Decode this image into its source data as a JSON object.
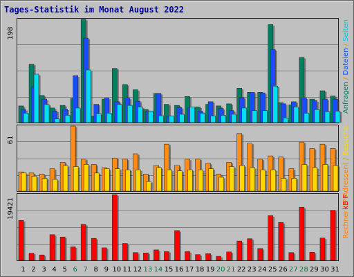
{
  "chart_data": {
    "type": "bar",
    "title": "Tages-Statistik im Monat August 2022",
    "weekend_color": "#007a44",
    "weekday_color": "#000000",
    "categories": [
      "1",
      "2",
      "3",
      "4",
      "5",
      "6",
      "7",
      "8",
      "9",
      "10",
      "11",
      "12",
      "13",
      "14",
      "15",
      "16",
      "17",
      "18",
      "19",
      "20",
      "21",
      "22",
      "23",
      "24",
      "25",
      "26",
      "27",
      "28",
      "29",
      "30",
      "31"
    ],
    "weekend_days": [
      "6",
      "7",
      "13",
      "14",
      "20",
      "21",
      "27",
      "28"
    ],
    "panels": [
      {
        "ymax": 198,
        "ymax_label": "198",
        "side_label_parts": [
          {
            "text": "Anfragen",
            "color": "#008060"
          },
          {
            "text": " / ",
            "color": "#c8a000"
          },
          {
            "text": "Dateien",
            "color": "#0050ff"
          },
          {
            "text": " / ",
            "color": "#c8a000"
          },
          {
            "text": "Seiten",
            "color": "#00c8e8"
          }
        ],
        "series": [
          {
            "name": "Anfragen",
            "color": "#008060",
            "values": [
              32,
              112,
              52,
              28,
              33,
              46,
              198,
              12,
              45,
              104,
              73,
              63,
              25,
              56,
              35,
              33,
              50,
              30,
              35,
              32,
              36,
              66,
              58,
              58,
              188,
              38,
              34,
              125,
              45,
              61,
              51
            ]
          },
          {
            "name": "Dateien",
            "color": "#1a4cff",
            "values": [
              25,
              69,
              45,
              22,
              26,
              90,
              162,
              35,
              47,
              40,
              47,
              41,
              22,
              56,
              12,
              29,
              28,
              22,
              40,
              27,
              23,
              48,
              58,
              57,
              140,
              36,
              40,
              47,
              42,
              45,
              45
            ]
          },
          {
            "name": "Seiten",
            "color": "#00e0f0",
            "values": [
              18,
              93,
              35,
              7,
              14,
              28,
              101,
              17,
              18,
              35,
              33,
              30,
              22,
              13,
              13,
              16,
              30,
              18,
              13,
              14,
              16,
              28,
              23,
              23,
              70,
              9,
              30,
              18,
              25,
              21,
              22
            ]
          }
        ]
      },
      {
        "ymax": 61,
        "ymax_label": "61",
        "side_label_parts": [
          {
            "text": "Rechner (IP-Adressen)",
            "color": "#ff8000"
          },
          {
            "text": " / ",
            "color": "#c8a000"
          },
          {
            "text": "Besuche",
            "color": "#ffd700"
          }
        ],
        "series": [
          {
            "name": "Rechner (IP-Adressen)",
            "color": "#ff8c14",
            "values": [
              18,
              17,
              16,
              21,
              27,
              61,
              30,
              25,
              22,
              31,
              30,
              35,
              16,
              24,
              44,
              24,
              30,
              30,
              26,
              16,
              27,
              54,
              45,
              30,
              33,
              32,
              21,
              46,
              40,
              44,
              40
            ]
          },
          {
            "name": "Besuche",
            "color": "#ffd700",
            "values": [
              17,
              14,
              12,
              11,
              24,
              23,
              25,
              17,
              21,
              21,
              20,
              20,
              9,
              22,
              20,
              19,
              20,
              20,
              21,
              13,
              23,
              24,
              22,
              20,
              20,
              12,
              12,
              25,
              22,
              25,
              24
            ]
          }
        ]
      },
      {
        "ymax": 19421,
        "ymax_label": "19421",
        "side_label_parts": [
          {
            "text": "kB F",
            "color": "#ff0000"
          }
        ],
        "series": [
          {
            "name": "kB F",
            "color": "#ff0000",
            "values": [
              11800,
              2100,
              1600,
              7600,
              6900,
              4000,
              10600,
              6500,
              3700,
              19421,
              5000,
              2300,
              2200,
              3100,
              2600,
              8800,
              2600,
              1700,
              2000,
              1200,
              2500,
              5700,
              6400,
              3500,
              13200,
              11200,
              2300,
              15700,
              2400,
              6600,
              14800
            ]
          }
        ]
      }
    ]
  }
}
